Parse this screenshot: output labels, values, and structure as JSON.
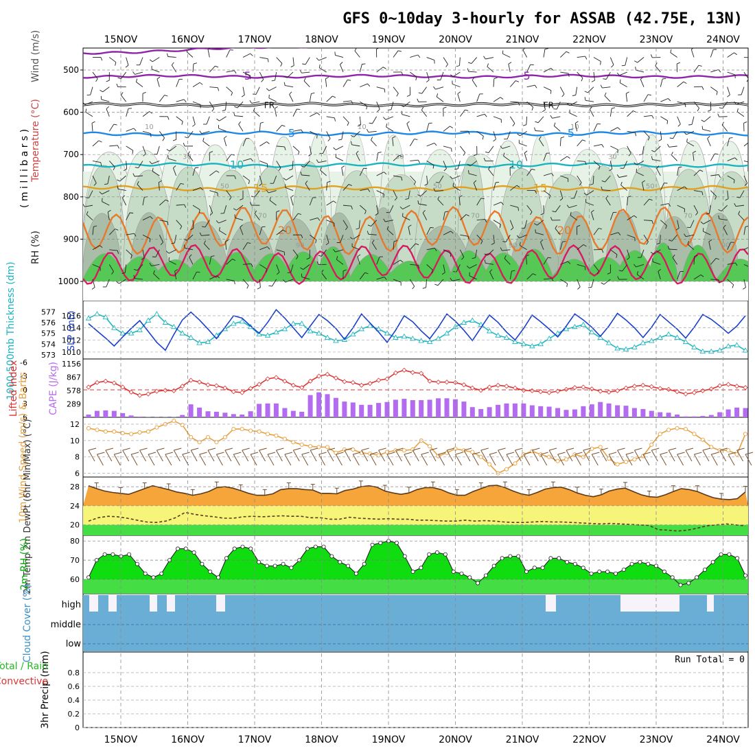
{
  "title": "GFS 0~10day 3-hourly for ASSAB (42.75E, 13N)",
  "dates": [
    "15NOV",
    "16NOV",
    "17NOV",
    "18NOV",
    "19NOV",
    "20NOV",
    "21NOV",
    "22NOV",
    "23NOV",
    "24NOV"
  ],
  "colors": {
    "purple": "#8e24aa",
    "black": "#111111",
    "blue": "#1e88e5",
    "cyan": "#1ab3c0",
    "orange_gold": "#e0a020",
    "orange": "#e8792a",
    "magenta": "#d81b60",
    "rh_light": "#e8f3e8",
    "rh_mid": "#c6dcc6",
    "rh_dark": "#a9bda9",
    "rh_green": "#55c855",
    "slp": "#1a3fc9",
    "thick": "#20b8c0",
    "cape": "#b36bef",
    "li": "#dd3333",
    "wind": "#e8a040",
    "barb": "#7a5230",
    "temp_fill": "#f5a53a",
    "dew_fill": "#f6f57a",
    "low_fill": "#44dd44",
    "rh_fill": "#10dd10",
    "rh_fill_hi": "#00aa00",
    "cloud": "#6aaed6"
  },
  "chart_data": [
    {
      "type": "contour",
      "panel": "profile",
      "ylabels": [
        "Wind (m/s)",
        "Temperature (°C)",
        "RH (%)",
        "( m i l l i b a r s )"
      ],
      "yticks": [
        500,
        600,
        700,
        800,
        900,
        1000
      ],
      "ylim": [
        1000,
        450
      ],
      "isotherms": [
        {
          "label": "-10",
          "level": 460,
          "amp": 4
        },
        {
          "label": "-5",
          "level": 515,
          "amp": 4
        },
        {
          "label": "FR",
          "level": 582,
          "amp": 4
        },
        {
          "label": "5",
          "level": 650,
          "amp": 5
        },
        {
          "label": "10",
          "level": 725,
          "amp": 5
        },
        {
          "label": "15",
          "level": 780,
          "amp": 6
        },
        {
          "label": "20",
          "level": 880,
          "amp": 30
        },
        {
          "label": "",
          "level": 960,
          "amp": 25
        }
      ],
      "rh_labels": [
        "10",
        "30",
        "50",
        "70",
        "90"
      ]
    },
    {
      "type": "line",
      "panel": "slp_thickness",
      "ylabel_left": "1000-500mb Thickness (dm)",
      "ylabel_right": "SLP (mb)",
      "yticks_left": [
        "577",
        "576",
        "575",
        "574",
        "573"
      ],
      "yticks_right": [
        "1016",
        "1014",
        "1012",
        "1010"
      ],
      "ylim_left": [
        572.8,
        577.6
      ],
      "ylim_right": [
        1009.2,
        1017.7
      ],
      "series": [
        {
          "name": "SLP",
          "values": [
            1014.7,
            1013.5,
            1012.3,
            1011.0,
            1012.5,
            1013.9,
            1015.2,
            1013.4,
            1011.6,
            1010.3,
            1012.9,
            1015.3,
            1016.6,
            1015.3,
            1013.8,
            1012.2,
            1014.1,
            1016.0,
            1015.6,
            1014.3,
            1013.1,
            1014.9,
            1017.0,
            1015.6,
            1014.0,
            1012.4,
            1014.3,
            1016.2,
            1015.2,
            1013.9,
            1012.1,
            1014.0,
            1016.3,
            1014.8,
            1013.3,
            1011.6,
            1013.6,
            1016.0,
            1015.0,
            1013.5,
            1012.2,
            1014.1,
            1016.3,
            1015.1,
            1013.6,
            1011.9,
            1014.0,
            1016.1,
            1014.9,
            1013.3,
            1012.0,
            1013.9,
            1016.1,
            1015.0,
            1013.8,
            1012.5,
            1014.3,
            1016.3,
            1015.3,
            1014.1,
            1012.6,
            1014.3,
            1016.4,
            1015.3,
            1014.0,
            1012.4,
            1014.1,
            1016.2,
            1015.0,
            1013.8,
            1012.3,
            1014.1,
            1016.2,
            1015.4,
            1014.3,
            1013.1,
            1014.3,
            1016.0
          ]
        },
        {
          "name": "Thickness",
          "values": [
            576.4,
            576.8,
            576.5,
            575.5,
            575.0,
            575.0,
            575.3,
            576.2,
            576.8,
            576.0,
            575.6,
            575.0,
            574.6,
            574.1,
            574.2,
            574.8,
            575.4,
            575.9,
            576.1,
            575.6,
            574.9,
            574.8,
            575.1,
            575.4,
            575.9,
            575.9,
            575.2,
            575.0,
            574.6,
            574.3,
            574.4,
            574.9,
            575.4,
            575.7,
            575.4,
            575.0,
            574.6,
            574.7,
            574.5,
            574.3,
            574.2,
            574.5,
            575.0,
            575.6,
            576.0,
            576.2,
            575.8,
            575.2,
            574.8,
            574.6,
            574.2,
            574.0,
            573.8,
            574.0,
            574.5,
            575.0,
            575.4,
            575.6,
            575.8,
            575.1,
            574.6,
            574.1,
            573.6,
            573.5,
            573.7,
            574.1,
            574.3,
            574.6,
            574.9,
            574.6,
            574.2,
            573.7,
            573.3,
            573.3,
            573.4,
            573.8,
            573.9,
            573.4
          ]
        }
      ]
    },
    {
      "type": "bar",
      "panel": "cape_li",
      "ylabel_left": "Lifted Index",
      "ylabel_right": "CAPE (J/kg)",
      "yticks_left": [
        "-6",
        "-3",
        "0",
        "3",
        "6"
      ],
      "yticks_right": [
        "1156",
        "867",
        "578",
        "289"
      ],
      "ylim_right": [
        0,
        1156
      ],
      "series": [
        {
          "name": "CAPE",
          "values": [
            60,
            140,
            150,
            140,
            90,
            40,
            15,
            5,
            5,
            5,
            5,
            50,
            280,
            210,
            130,
            120,
            100,
            70,
            60,
            130,
            290,
            300,
            300,
            200,
            140,
            120,
            480,
            540,
            500,
            420,
            340,
            320,
            270,
            270,
            310,
            330,
            380,
            400,
            370,
            370,
            380,
            410,
            410,
            390,
            340,
            220,
            180,
            220,
            270,
            300,
            300,
            300,
            260,
            240,
            230,
            200,
            160,
            170,
            240,
            280,
            330,
            300,
            260,
            250,
            200,
            180,
            140,
            110,
            100,
            60,
            20,
            20,
            30,
            50,
            110,
            170,
            210,
            200
          ]
        },
        {
          "name": "Lifted Index",
          "values": [
            -0.6,
            -1.6,
            -1.9,
            -1.5,
            -0.6,
            0.5,
            1.2,
            0.9,
            0.3,
            0.1,
            0.2,
            -0.8,
            -2.1,
            -1.7,
            -1.1,
            -0.9,
            -0.4,
            0.4,
            0.6,
            -0.3,
            -1.2,
            -2.4,
            -2.7,
            -1.9,
            -1.0,
            -0.5,
            -1.9,
            -3.0,
            -3.4,
            -2.6,
            -1.8,
            -1.6,
            -1.0,
            -1.4,
            -2.1,
            -2.4,
            -3.7,
            -4.3,
            -3.8,
            -3.6,
            -1.9,
            -1.7,
            -1.7,
            -1.6,
            -1.1,
            -0.4,
            0.1,
            -0.6,
            -1.0,
            -0.8,
            -0.4,
            0.1,
            0.2,
            0.4,
            0.6,
            0.3,
            -0.1,
            -0.5,
            -0.6,
            -0.2,
            0.3,
            0.5,
            0.2,
            -0.4,
            -0.8,
            -1.0,
            -0.7,
            -0.3,
            -0.1,
            0.4,
            0.9,
            0.6,
            0.2,
            -0.2,
            -0.9,
            -1.2,
            -0.8,
            -0.5
          ]
        }
      ]
    },
    {
      "type": "line",
      "panel": "wind10m",
      "ylabel": "10m Wind Speed (m/s) & Barbs",
      "yticks": [
        "12",
        "10",
        "8",
        "6"
      ],
      "ylim": [
        5.8,
        12.5
      ],
      "series": [
        {
          "name": "Wind Speed",
          "values": [
            11.5,
            11.3,
            11.1,
            11.1,
            10.9,
            10.8,
            11.0,
            11.1,
            11.6,
            12.0,
            12.4,
            11.9,
            10.4,
            9.8,
            10.4,
            9.8,
            10.4,
            11.4,
            11.4,
            11.2,
            11.1,
            10.8,
            10.6,
            10.2,
            9.8,
            9.5,
            9.3,
            9.2,
            9.2,
            8.5,
            8.9,
            8.9,
            8.5,
            8.4,
            8.2,
            8.6,
            8.8,
            8.8,
            8.9,
            10.0,
            9.3,
            8.1,
            8.5,
            9.0,
            8.8,
            8.6,
            8.0,
            7.1,
            6.0,
            6.5,
            7.2,
            8.3,
            8.7,
            8.3,
            8.0,
            7.5,
            7.7,
            8.3,
            8.0,
            9.0,
            9.2,
            7.8,
            7.1,
            7.4,
            7.7,
            8.1,
            9.5,
            10.8,
            11.3,
            11.5,
            11.4,
            10.8,
            10.1,
            9.2,
            8.8,
            8.8,
            8.3,
            10.8
          ]
        }
      ]
    },
    {
      "type": "area",
      "panel": "temp_dewpoint",
      "ylabel": "2m Temp 2m DewPt (6hr Min/Max) (°C)",
      "yticks": [
        "28",
        "24",
        "20"
      ],
      "ylim": [
        17.8,
        29.6
      ],
      "series": [
        {
          "name": "2m Temp",
          "values": [
            28.2,
            27.6,
            27.1,
            26.8,
            26.6,
            26.4,
            27.0,
            27.6,
            28.2,
            27.8,
            27.4,
            26.9,
            26.6,
            26.2,
            26.5,
            27.0,
            27.8,
            28.0,
            27.7,
            27.2,
            26.6,
            26.2,
            26.2,
            26.5,
            27.4,
            27.6,
            27.6,
            27.4,
            27.3,
            26.6,
            26.6,
            26.5,
            27.2,
            27.5,
            28.0,
            28.2,
            27.9,
            27.1,
            26.7,
            26.4,
            26.7,
            27.4,
            27.8,
            27.8,
            27.4,
            26.7,
            26.2,
            26.2,
            27.0,
            27.6,
            28.2,
            28.3,
            27.8,
            27.1,
            26.5,
            26.2,
            26.8,
            27.5,
            27.8,
            27.9,
            27.4,
            26.7,
            26.2,
            25.9,
            26.3,
            27.1,
            27.5,
            27.7,
            27.0,
            26.3,
            25.9,
            25.8,
            26.3,
            27.0,
            27.6,
            27.4,
            27.0,
            26.3,
            25.7,
            25.4,
            25.3,
            25.5,
            26.9
          ]
        },
        {
          "name": "2m DewPt",
          "values": [
            20.8,
            21.5,
            21.8,
            21.7,
            21.4,
            21.0,
            20.6,
            20.5,
            20.8,
            21.5,
            22.6,
            22.2,
            21.9,
            21.7,
            21.4,
            21.4,
            21.7,
            21.8,
            21.7,
            21.8,
            21.9,
            21.8,
            21.8,
            21.5,
            21.5,
            21.2,
            21.2,
            21.6,
            21.4,
            21.3,
            21.2,
            21.3,
            21.2,
            21.2,
            21.0,
            21.0,
            20.9,
            20.8,
            20.8,
            21.0,
            20.8,
            20.9,
            20.8,
            20.6,
            20.5,
            20.5,
            20.6,
            20.7,
            20.6,
            20.6,
            20.5,
            20.4,
            20.3,
            20.2,
            20.3,
            20.2,
            20.1,
            20.0,
            19.9,
            19.0,
            18.9,
            18.7,
            18.9,
            19.3,
            19.8,
            20.0,
            20.2,
            20.0,
            19.8
          ]
        }
      ]
    },
    {
      "type": "area",
      "panel": "rh2m",
      "ylabel": "2m RH (%)",
      "yticks": [
        "80",
        "70",
        "60"
      ],
      "ylim": [
        52.5,
        81.5
      ],
      "series": [
        {
          "name": "2m RH",
          "values": [
            61,
            70,
            73,
            73,
            72,
            73,
            68,
            63,
            61,
            63,
            70,
            76,
            76,
            74,
            68,
            64,
            61,
            71,
            76,
            77,
            76,
            69,
            67,
            67,
            68,
            66,
            70,
            76,
            77,
            77,
            72,
            69,
            67,
            63,
            68,
            78,
            79,
            80,
            79,
            72,
            64,
            66,
            73,
            74,
            73,
            64,
            63,
            61,
            58,
            62,
            67,
            71,
            72,
            72,
            64,
            66,
            66,
            71,
            71,
            69,
            68,
            66,
            63,
            64,
            64,
            63,
            65,
            68,
            69,
            68,
            67,
            64,
            61,
            57,
            58,
            61,
            65,
            69,
            73,
            73,
            71,
            62
          ]
        }
      ]
    },
    {
      "type": "bar",
      "panel": "cloud",
      "ylabel": "Cloud Cover (%)",
      "levels": [
        "high",
        "middle",
        "low"
      ],
      "series": [
        {
          "name": "High Cloud",
          "values": [
            0,
            0,
            0,
            0,
            0,
            0,
            0,
            0,
            0,
            0,
            0,
            0,
            0,
            0,
            0,
            0,
            0,
            0,
            0,
            0,
            0,
            0,
            0,
            0,
            0,
            0,
            0,
            0,
            0,
            0,
            0,
            0,
            0,
            0,
            0,
            0,
            0,
            0,
            0,
            0,
            0,
            0,
            0,
            0,
            0,
            0,
            0,
            0,
            0,
            0,
            0,
            0,
            0,
            0,
            0,
            0,
            0,
            0,
            0,
            0,
            0,
            0,
            0,
            0,
            0,
            0,
            0,
            0,
            0,
            0,
            0,
            0,
            0,
            0,
            0,
            0,
            0,
            0,
            0,
            0,
            0,
            0
          ]
        }
      ]
    },
    {
      "type": "bar",
      "panel": "precip",
      "ylabel": "3hr Precip (mm)",
      "legend_left": "Total / Rain",
      "legend_left2": "Convective",
      "annotation": "Run Total = 0",
      "yticks": [
        "0.8",
        "0.6",
        "0.4",
        "0.2",
        "0"
      ],
      "ylim": [
        0,
        1.0
      ],
      "series": [
        {
          "name": "Total",
          "values": [
            0
          ]
        },
        {
          "name": "Convective",
          "values": [
            0
          ]
        }
      ]
    }
  ]
}
